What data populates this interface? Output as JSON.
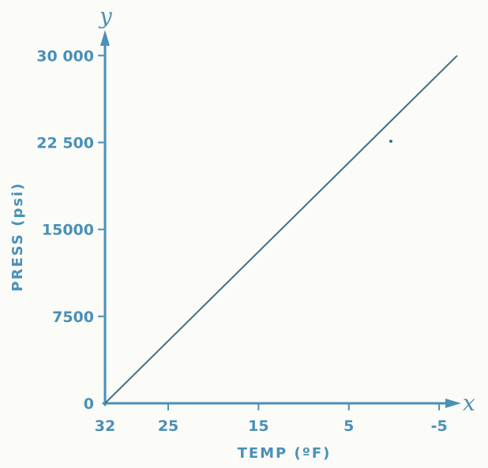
{
  "chart_data": {
    "type": "line",
    "title": "",
    "xlabel": "TEMP (ºF)",
    "ylabel": "PRESS (psi)",
    "x_axis_letter": "x",
    "y_axis_letter": "y",
    "x_ticks": [
      32,
      25,
      15,
      5,
      -5
    ],
    "x_tick_labels": [
      "32",
      "25",
      "15",
      "5",
      "-5"
    ],
    "y_ticks": [
      0,
      7500,
      15000,
      22500,
      30000
    ],
    "y_tick_labels": [
      "0",
      "7500",
      "15000",
      "22 500",
      "30 000"
    ],
    "xlim": [
      32,
      -7
    ],
    "ylim": [
      0,
      32000
    ],
    "x_reversed": true,
    "grid": false,
    "series": [
      {
        "x": [
          32,
          -7
        ],
        "y": [
          0,
          30000
        ]
      }
    ],
    "colors": {
      "axis": "#4a90b8",
      "line": "#3f6f86"
    }
  }
}
